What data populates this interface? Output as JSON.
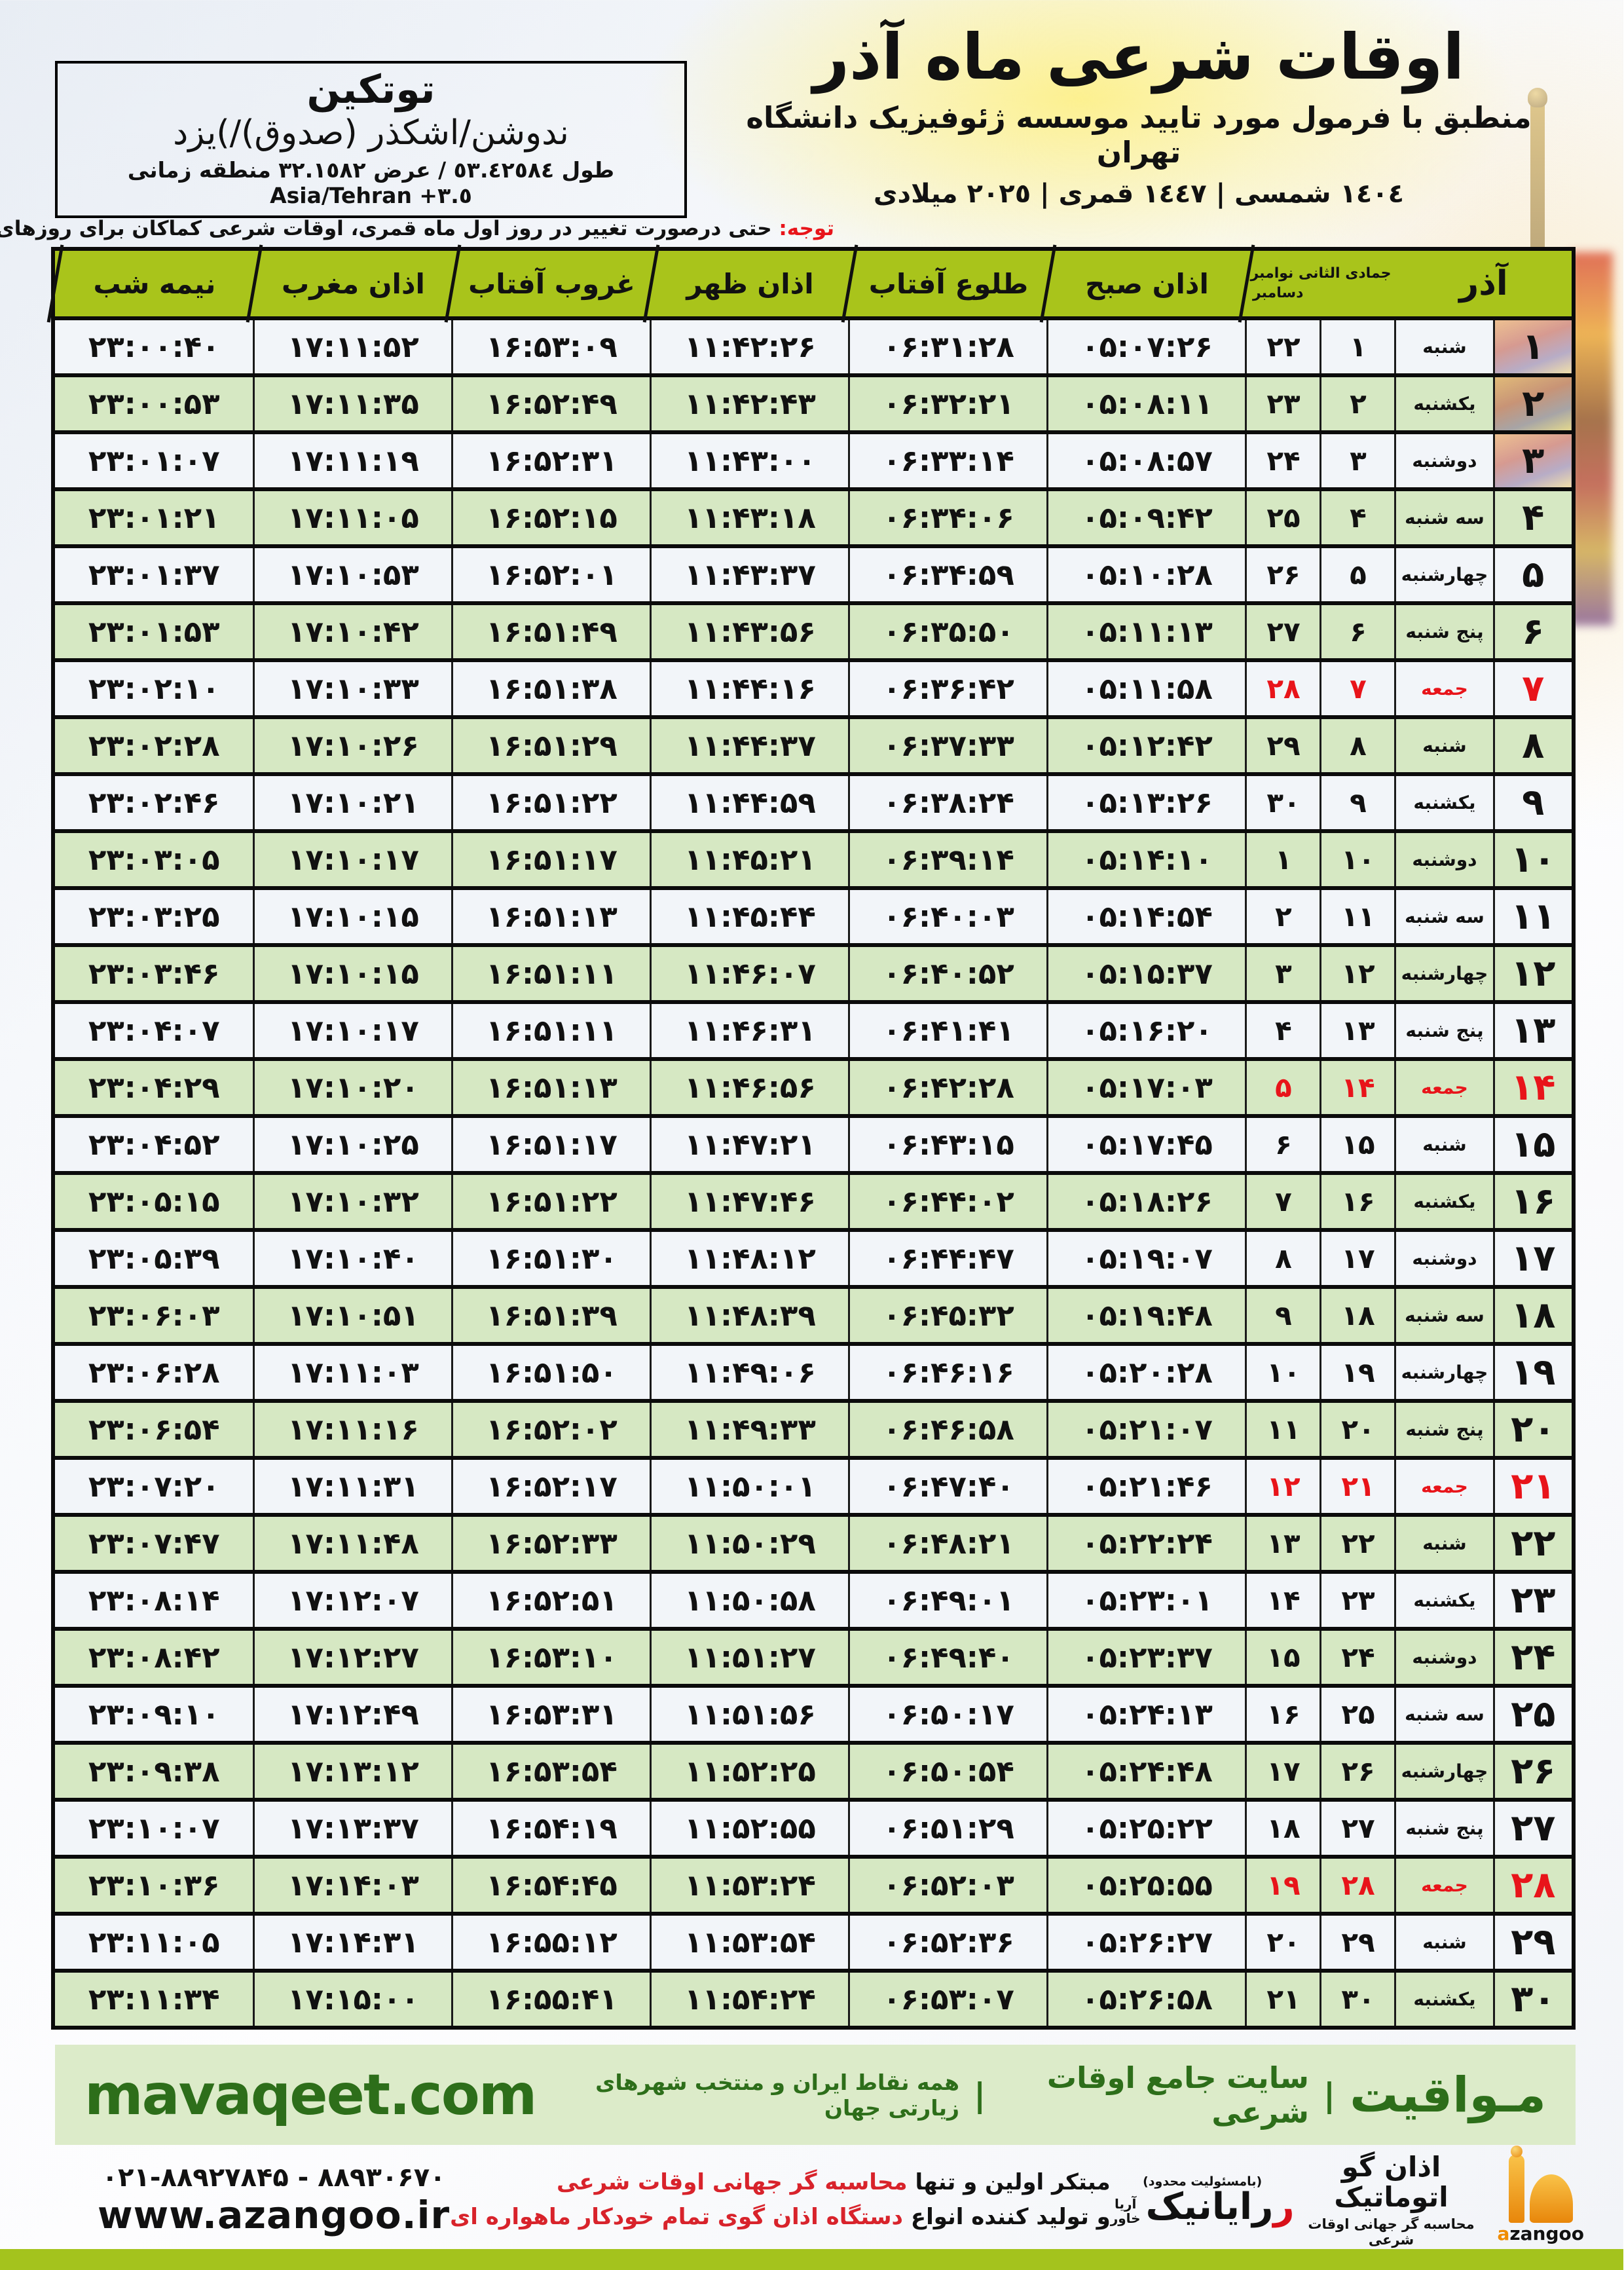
{
  "meta": {
    "accent_green": "#a9c41b",
    "row_green": "#d6e8c3",
    "row_white": "#f2f5f9",
    "friday_red": "#e8141a",
    "footer_bg": "#dcebc9",
    "footer_text": "#2d6e1a",
    "bottom_bar": "#a4c31d",
    "dome_orange": "#e8860a"
  },
  "header": {
    "title": "اوقات شرعی ماه آذر",
    "subtitle": "منطبق با فرمول مورد تایید موسسه ژئوفیزیک دانشگاه تهران",
    "dates": "١٤٠٤ شمسی | ١٤٤٧ قمری | ٢٠٢٥ میلادی",
    "location_name": "توتکین",
    "location_region": "ندوشن/اشکذر (صدوق)/)یزد",
    "location_coords": "طول ٥٣.٤٢٥٨٤ / عرض ٣٢.١٥٨٢ منطقه زمانی",
    "location_tz": "Asia/Tehran +٣.٥",
    "notice_label": "توجه:",
    "notice_text": " حتی درصورت تغییر در روز اول ماه قمری، اوقات شرعی کماکان برای روزهای شمسی و میلادی معتبر است."
  },
  "table": {
    "headers": {
      "month": "آذر",
      "calendar_top": "جمادی الثانی نوامبر",
      "calendar_bottom": "دسامبر",
      "fajr": "اذان صبح",
      "sunrise": "طلوع آفتاب",
      "dhuhr": "اذان ظهر",
      "sunset": "غروب آفتاب",
      "maghrib": "اذان مغرب",
      "midnight": "نیمه شب"
    },
    "rows": [
      {
        "day": "۱",
        "weekday": "شنبه",
        "lunar": "۱",
        "greg": "۲۲",
        "fajr": "۰۵:۰۷:۲۶",
        "sunrise": "۰۶:۳۱:۲۸",
        "dhuhr": "۱۱:۴۲:۲۶",
        "sunset": "۱۶:۵۳:۰۹",
        "maghrib": "۱۷:۱۱:۵۲",
        "midnight": "۲۳:۰۰:۴۰",
        "friday": false
      },
      {
        "day": "۲",
        "weekday": "یکشنبه",
        "lunar": "۲",
        "greg": "۲۳",
        "fajr": "۰۵:۰۸:۱۱",
        "sunrise": "۰۶:۳۲:۲۱",
        "dhuhr": "۱۱:۴۲:۴۳",
        "sunset": "۱۶:۵۲:۴۹",
        "maghrib": "۱۷:۱۱:۳۵",
        "midnight": "۲۳:۰۰:۵۳",
        "friday": false
      },
      {
        "day": "۳",
        "weekday": "دوشنبه",
        "lunar": "۳",
        "greg": "۲۴",
        "fajr": "۰۵:۰۸:۵۷",
        "sunrise": "۰۶:۳۳:۱۴",
        "dhuhr": "۱۱:۴۳:۰۰",
        "sunset": "۱۶:۵۲:۳۱",
        "maghrib": "۱۷:۱۱:۱۹",
        "midnight": "۲۳:۰۱:۰۷",
        "friday": false
      },
      {
        "day": "۴",
        "weekday": "سه شنبه",
        "lunar": "۴",
        "greg": "۲۵",
        "fajr": "۰۵:۰۹:۴۲",
        "sunrise": "۰۶:۳۴:۰۶",
        "dhuhr": "۱۱:۴۳:۱۸",
        "sunset": "۱۶:۵۲:۱۵",
        "maghrib": "۱۷:۱۱:۰۵",
        "midnight": "۲۳:۰۱:۲۱",
        "friday": false
      },
      {
        "day": "۵",
        "weekday": "چهارشنبه",
        "lunar": "۵",
        "greg": "۲۶",
        "fajr": "۰۵:۱۰:۲۸",
        "sunrise": "۰۶:۳۴:۵۹",
        "dhuhr": "۱۱:۴۳:۳۷",
        "sunset": "۱۶:۵۲:۰۱",
        "maghrib": "۱۷:۱۰:۵۳",
        "midnight": "۲۳:۰۱:۳۷",
        "friday": false
      },
      {
        "day": "۶",
        "weekday": "پنج شنبه",
        "lunar": "۶",
        "greg": "۲۷",
        "fajr": "۰۵:۱۱:۱۳",
        "sunrise": "۰۶:۳۵:۵۰",
        "dhuhr": "۱۱:۴۳:۵۶",
        "sunset": "۱۶:۵۱:۴۹",
        "maghrib": "۱۷:۱۰:۴۲",
        "midnight": "۲۳:۰۱:۵۳",
        "friday": false
      },
      {
        "day": "۷",
        "weekday": "جمعه",
        "lunar": "۷",
        "greg": "۲۸",
        "fajr": "۰۵:۱۱:۵۸",
        "sunrise": "۰۶:۳۶:۴۲",
        "dhuhr": "۱۱:۴۴:۱۶",
        "sunset": "۱۶:۵۱:۳۸",
        "maghrib": "۱۷:۱۰:۳۳",
        "midnight": "۲۳:۰۲:۱۰",
        "friday": true
      },
      {
        "day": "۸",
        "weekday": "شنبه",
        "lunar": "۸",
        "greg": "۲۹",
        "fajr": "۰۵:۱۲:۴۲",
        "sunrise": "۰۶:۳۷:۳۳",
        "dhuhr": "۱۱:۴۴:۳۷",
        "sunset": "۱۶:۵۱:۲۹",
        "maghrib": "۱۷:۱۰:۲۶",
        "midnight": "۲۳:۰۲:۲۸",
        "friday": false
      },
      {
        "day": "۹",
        "weekday": "یکشنبه",
        "lunar": "۹",
        "greg": "۳۰",
        "fajr": "۰۵:۱۳:۲۶",
        "sunrise": "۰۶:۳۸:۲۴",
        "dhuhr": "۱۱:۴۴:۵۹",
        "sunset": "۱۶:۵۱:۲۲",
        "maghrib": "۱۷:۱۰:۲۱",
        "midnight": "۲۳:۰۲:۴۶",
        "friday": false
      },
      {
        "day": "۱۰",
        "weekday": "دوشنبه",
        "lunar": "۱۰",
        "greg": "۱",
        "fajr": "۰۵:۱۴:۱۰",
        "sunrise": "۰۶:۳۹:۱۴",
        "dhuhr": "۱۱:۴۵:۲۱",
        "sunset": "۱۶:۵۱:۱۷",
        "maghrib": "۱۷:۱۰:۱۷",
        "midnight": "۲۳:۰۳:۰۵",
        "friday": false
      },
      {
        "day": "۱۱",
        "weekday": "سه شنبه",
        "lunar": "۱۱",
        "greg": "۲",
        "fajr": "۰۵:۱۴:۵۴",
        "sunrise": "۰۶:۴۰:۰۳",
        "dhuhr": "۱۱:۴۵:۴۴",
        "sunset": "۱۶:۵۱:۱۳",
        "maghrib": "۱۷:۱۰:۱۵",
        "midnight": "۲۳:۰۳:۲۵",
        "friday": false
      },
      {
        "day": "۱۲",
        "weekday": "چهارشنبه",
        "lunar": "۱۲",
        "greg": "۳",
        "fajr": "۰۵:۱۵:۳۷",
        "sunrise": "۰۶:۴۰:۵۲",
        "dhuhr": "۱۱:۴۶:۰۷",
        "sunset": "۱۶:۵۱:۱۱",
        "maghrib": "۱۷:۱۰:۱۵",
        "midnight": "۲۳:۰۳:۴۶",
        "friday": false
      },
      {
        "day": "۱۳",
        "weekday": "پنج شنبه",
        "lunar": "۱۳",
        "greg": "۴",
        "fajr": "۰۵:۱۶:۲۰",
        "sunrise": "۰۶:۴۱:۴۱",
        "dhuhr": "۱۱:۴۶:۳۱",
        "sunset": "۱۶:۵۱:۱۱",
        "maghrib": "۱۷:۱۰:۱۷",
        "midnight": "۲۳:۰۴:۰۷",
        "friday": false
      },
      {
        "day": "۱۴",
        "weekday": "جمعه",
        "lunar": "۱۴",
        "greg": "۵",
        "fajr": "۰۵:۱۷:۰۳",
        "sunrise": "۰۶:۴۲:۲۸",
        "dhuhr": "۱۱:۴۶:۵۶",
        "sunset": "۱۶:۵۱:۱۳",
        "maghrib": "۱۷:۱۰:۲۰",
        "midnight": "۲۳:۰۴:۲۹",
        "friday": true
      },
      {
        "day": "۱۵",
        "weekday": "شنبه",
        "lunar": "۱۵",
        "greg": "۶",
        "fajr": "۰۵:۱۷:۴۵",
        "sunrise": "۰۶:۴۳:۱۵",
        "dhuhr": "۱۱:۴۷:۲۱",
        "sunset": "۱۶:۵۱:۱۷",
        "maghrib": "۱۷:۱۰:۲۵",
        "midnight": "۲۳:۰۴:۵۲",
        "friday": false
      },
      {
        "day": "۱۶",
        "weekday": "یکشنبه",
        "lunar": "۱۶",
        "greg": "۷",
        "fajr": "۰۵:۱۸:۲۶",
        "sunrise": "۰۶:۴۴:۰۲",
        "dhuhr": "۱۱:۴۷:۴۶",
        "sunset": "۱۶:۵۱:۲۲",
        "maghrib": "۱۷:۱۰:۳۲",
        "midnight": "۲۳:۰۵:۱۵",
        "friday": false
      },
      {
        "day": "۱۷",
        "weekday": "دوشنبه",
        "lunar": "۱۷",
        "greg": "۸",
        "fajr": "۰۵:۱۹:۰۷",
        "sunrise": "۰۶:۴۴:۴۷",
        "dhuhr": "۱۱:۴۸:۱۲",
        "sunset": "۱۶:۵۱:۳۰",
        "maghrib": "۱۷:۱۰:۴۰",
        "midnight": "۲۳:۰۵:۳۹",
        "friday": false
      },
      {
        "day": "۱۸",
        "weekday": "سه شنبه",
        "lunar": "۱۸",
        "greg": "۹",
        "fajr": "۰۵:۱۹:۴۸",
        "sunrise": "۰۶:۴۵:۳۲",
        "dhuhr": "۱۱:۴۸:۳۹",
        "sunset": "۱۶:۵۱:۳۹",
        "maghrib": "۱۷:۱۰:۵۱",
        "midnight": "۲۳:۰۶:۰۳",
        "friday": false
      },
      {
        "day": "۱۹",
        "weekday": "چهارشنبه",
        "lunar": "۱۹",
        "greg": "۱۰",
        "fajr": "۰۵:۲۰:۲۸",
        "sunrise": "۰۶:۴۶:۱۶",
        "dhuhr": "۱۱:۴۹:۰۶",
        "sunset": "۱۶:۵۱:۵۰",
        "maghrib": "۱۷:۱۱:۰۳",
        "midnight": "۲۳:۰۶:۲۸",
        "friday": false
      },
      {
        "day": "۲۰",
        "weekday": "پنج شنبه",
        "lunar": "۲۰",
        "greg": "۱۱",
        "fajr": "۰۵:۲۱:۰۷",
        "sunrise": "۰۶:۴۶:۵۸",
        "dhuhr": "۱۱:۴۹:۳۳",
        "sunset": "۱۶:۵۲:۰۲",
        "maghrib": "۱۷:۱۱:۱۶",
        "midnight": "۲۳:۰۶:۵۴",
        "friday": false
      },
      {
        "day": "۲۱",
        "weekday": "جمعه",
        "lunar": "۲۱",
        "greg": "۱۲",
        "fajr": "۰۵:۲۱:۴۶",
        "sunrise": "۰۶:۴۷:۴۰",
        "dhuhr": "۱۱:۵۰:۰۱",
        "sunset": "۱۶:۵۲:۱۷",
        "maghrib": "۱۷:۱۱:۳۱",
        "midnight": "۲۳:۰۷:۲۰",
        "friday": true
      },
      {
        "day": "۲۲",
        "weekday": "شنبه",
        "lunar": "۲۲",
        "greg": "۱۳",
        "fajr": "۰۵:۲۲:۲۴",
        "sunrise": "۰۶:۴۸:۲۱",
        "dhuhr": "۱۱:۵۰:۲۹",
        "sunset": "۱۶:۵۲:۳۳",
        "maghrib": "۱۷:۱۱:۴۸",
        "midnight": "۲۳:۰۷:۴۷",
        "friday": false
      },
      {
        "day": "۲۳",
        "weekday": "یکشنبه",
        "lunar": "۲۳",
        "greg": "۱۴",
        "fajr": "۰۵:۲۳:۰۱",
        "sunrise": "۰۶:۴۹:۰۱",
        "dhuhr": "۱۱:۵۰:۵۸",
        "sunset": "۱۶:۵۲:۵۱",
        "maghrib": "۱۷:۱۲:۰۷",
        "midnight": "۲۳:۰۸:۱۴",
        "friday": false
      },
      {
        "day": "۲۴",
        "weekday": "دوشنبه",
        "lunar": "۲۴",
        "greg": "۱۵",
        "fajr": "۰۵:۲۳:۳۷",
        "sunrise": "۰۶:۴۹:۴۰",
        "dhuhr": "۱۱:۵۱:۲۷",
        "sunset": "۱۶:۵۳:۱۰",
        "maghrib": "۱۷:۱۲:۲۷",
        "midnight": "۲۳:۰۸:۴۲",
        "friday": false
      },
      {
        "day": "۲۵",
        "weekday": "سه شنبه",
        "lunar": "۲۵",
        "greg": "۱۶",
        "fajr": "۰۵:۲۴:۱۳",
        "sunrise": "۰۶:۵۰:۱۷",
        "dhuhr": "۱۱:۵۱:۵۶",
        "sunset": "۱۶:۵۳:۳۱",
        "maghrib": "۱۷:۱۲:۴۹",
        "midnight": "۲۳:۰۹:۱۰",
        "friday": false
      },
      {
        "day": "۲۶",
        "weekday": "چهارشنبه",
        "lunar": "۲۶",
        "greg": "۱۷",
        "fajr": "۰۵:۲۴:۴۸",
        "sunrise": "۰۶:۵۰:۵۴",
        "dhuhr": "۱۱:۵۲:۲۵",
        "sunset": "۱۶:۵۳:۵۴",
        "maghrib": "۱۷:۱۳:۱۲",
        "midnight": "۲۳:۰۹:۳۸",
        "friday": false
      },
      {
        "day": "۲۷",
        "weekday": "پنج شنبه",
        "lunar": "۲۷",
        "greg": "۱۸",
        "fajr": "۰۵:۲۵:۲۲",
        "sunrise": "۰۶:۵۱:۲۹",
        "dhuhr": "۱۱:۵۲:۵۵",
        "sunset": "۱۶:۵۴:۱۹",
        "maghrib": "۱۷:۱۳:۳۷",
        "midnight": "۲۳:۱۰:۰۷",
        "friday": false
      },
      {
        "day": "۲۸",
        "weekday": "جمعه",
        "lunar": "۲۸",
        "greg": "۱۹",
        "fajr": "۰۵:۲۵:۵۵",
        "sunrise": "۰۶:۵۲:۰۳",
        "dhuhr": "۱۱:۵۳:۲۴",
        "sunset": "۱۶:۵۴:۴۵",
        "maghrib": "۱۷:۱۴:۰۳",
        "midnight": "۲۳:۱۰:۳۶",
        "friday": true
      },
      {
        "day": "۲۹",
        "weekday": "شنبه",
        "lunar": "۲۹",
        "greg": "۲۰",
        "fajr": "۰۵:۲۶:۲۷",
        "sunrise": "۰۶:۵۲:۳۶",
        "dhuhr": "۱۱:۵۳:۵۴",
        "sunset": "۱۶:۵۵:۱۲",
        "maghrib": "۱۷:۱۴:۳۱",
        "midnight": "۲۳:۱۱:۰۵",
        "friday": false
      },
      {
        "day": "۳۰",
        "weekday": "یکشنبه",
        "lunar": "۳۰",
        "greg": "۲۱",
        "fajr": "۰۵:۲۶:۵۸",
        "sunrise": "۰۶:۵۳:۰۷",
        "dhuhr": "۱۱:۵۴:۲۴",
        "sunset": "۱۶:۵۵:۴۱",
        "maghrib": "۱۷:۱۵:۰۰",
        "midnight": "۲۳:۱۱:۳۴",
        "friday": false
      }
    ]
  },
  "footer": {
    "brand_fa": "مـواقیت",
    "sep": "|",
    "tag1": "سایت جامع اوقات شرعی",
    "tag2": "همه نقاط ایران و منتخب شهرهای زیارتی جهان",
    "brand_en": "mavaqeet.com"
  },
  "bottom": {
    "phone": "۰۲۱-۸۸۹۲۷۸۴۵ - ۸۸۹۳۰۶۷۰",
    "site": "www.azangoo.ir",
    "line1_black": "مبتکر اولین و تنها ",
    "line1_red": "محاسبه گر جهانی اوقات شرعی",
    "line2_black": "و تولید کننده انواع ",
    "line2_red": "دستگاه اذان گوی تمام خودکار ماهواره ای",
    "rayanik_small": "(بامسئولیت محدود)",
    "rayanik_name": "رایانیک",
    "rayanik_sub1": "آریا",
    "rayanik_sub2": "خاور",
    "azangoo_title": "اذان گو اتوماتیک",
    "azangoo_sub": "محاسبه گر جهانی اوقات شرعی",
    "azangoo_en_a": "a",
    "azangoo_en_rest": "zangoo"
  }
}
